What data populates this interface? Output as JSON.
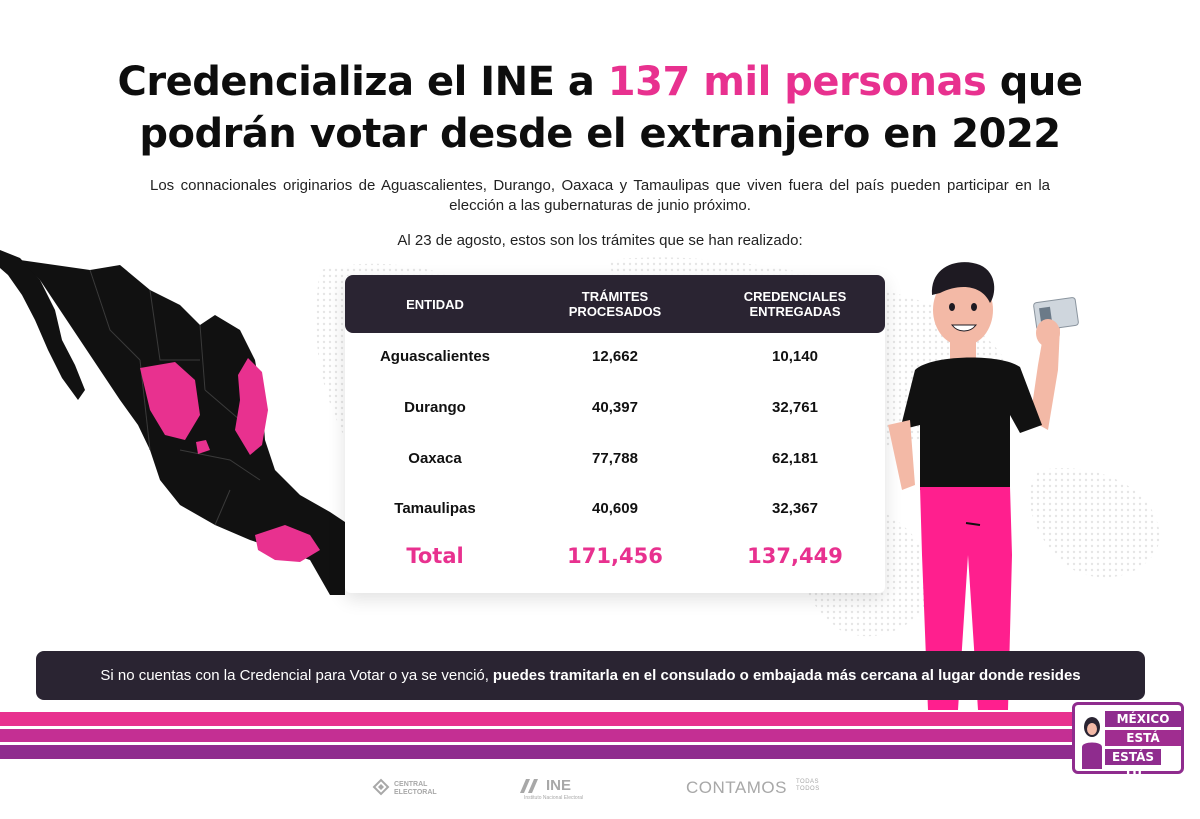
{
  "title": {
    "line1_before": "Credencializa el INE a ",
    "line1_accent": "137 mil personas",
    "line1_after": " que",
    "line2": "podrán votar desde el extranjero en 2022"
  },
  "subtitle": "Los connacionales originarios de Aguascalientes, Durango, Oaxaca y Tamaulipas que viven fuera del país pueden participar en la elección a las gubernaturas de junio próximo.",
  "date_line": "Al 23 de agosto, estos son los trámites que se han realizado:",
  "table": {
    "headers": [
      "ENTIDAD",
      "TRÁMITES PROCESADOS",
      "CREDENCIALES ENTREGADAS"
    ],
    "header_lines": [
      [
        "ENTIDAD"
      ],
      [
        "TRÁMITES",
        "PROCESADOS"
      ],
      [
        "CREDENCIALES",
        "ENTREGADAS"
      ]
    ],
    "rows": [
      {
        "entidad": "Aguascalientes",
        "tramites": "12,662",
        "credenciales": "10,140"
      },
      {
        "entidad": "Durango",
        "tramites": "40,397",
        "credenciales": "32,761"
      },
      {
        "entidad": "Oaxaca",
        "tramites": "77,788",
        "credenciales": "62,181"
      },
      {
        "entidad": "Tamaulipas",
        "tramites": "40,609",
        "credenciales": "32,367"
      }
    ],
    "total": {
      "label": "Total",
      "tramites": "171,456",
      "credenciales": "137,449"
    }
  },
  "notice": {
    "text": "Si no cuentas con la Credencial para Votar o ya se venció,",
    "bold": "puedes tramitarla en el consulado o embajada más cercana al lugar donde resides"
  },
  "badge": {
    "line1": "MÉXICO",
    "line2": "ESTÁ DONDE",
    "line3": "ESTÁS TÚ"
  },
  "footer": {
    "central_electoral": "CENTRAL ELECTORAL",
    "ine": "INE",
    "ine_sub": "Instituto Nacional Electoral",
    "contamos": "CONTAMOS",
    "contamos_sub": "TODAS TODOS"
  },
  "colors": {
    "accent": "#e8318f",
    "dark": "#2a2432",
    "purple": "#8f2c8e"
  },
  "icons": [
    "mexico-map-icon",
    "person-holding-card-icon",
    "central-electoral-logo-icon",
    "ine-logo-icon"
  ]
}
